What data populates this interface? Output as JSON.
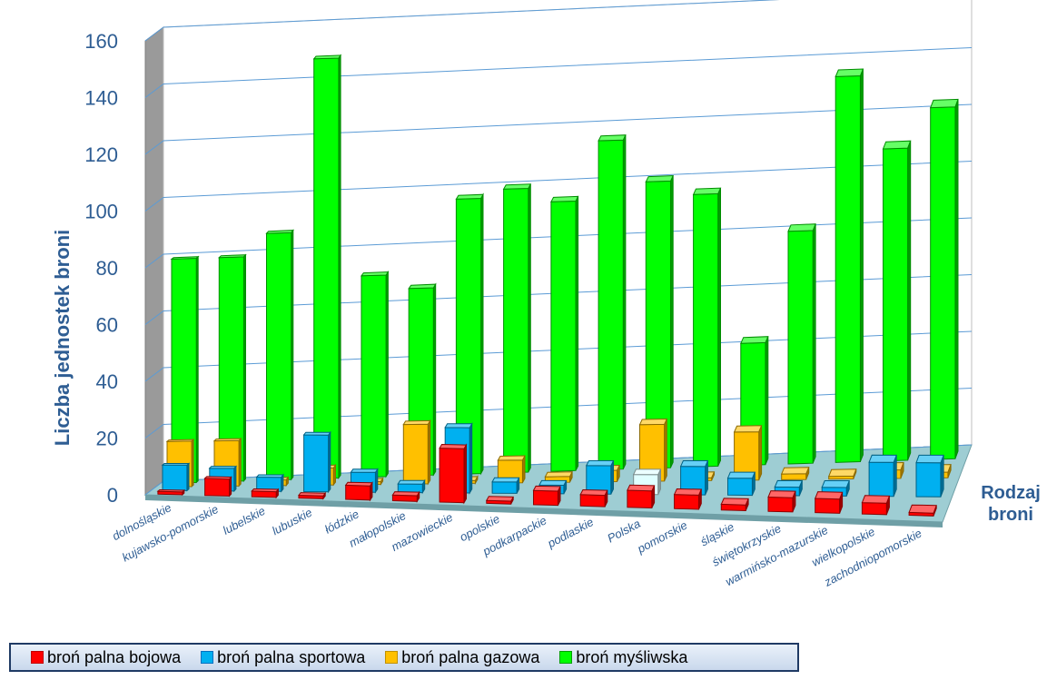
{
  "chart_data": {
    "type": "bar",
    "title": "",
    "ylabel": "Liczba jednostek broni",
    "depth_axis_label": [
      "Rodzaj",
      "broni"
    ],
    "ylim": [
      0,
      160
    ],
    "yticks": [
      0,
      20,
      40,
      60,
      80,
      100,
      120,
      140,
      160
    ],
    "grid": true,
    "legend": "bottom",
    "categories": [
      "dolnośląskie",
      "kujawsko-pomorskie",
      "lubelskie",
      "lubuskie",
      "łódzkie",
      "małopolskie",
      "mazowieckie",
      "opolskie",
      "podkarpackie",
      "podlaskie",
      "Polska",
      "pomorskie",
      "śląskie",
      "świętokrzyskie",
      "warmińsko-mazurskie",
      "wielkopolskie",
      "zachodniopomorskie"
    ],
    "series": [
      {
        "name": "broń palna bojowa",
        "color": "#ff0000",
        "values": [
          1,
          6,
          2,
          1,
          5,
          2,
          19,
          1,
          5,
          4,
          6,
          5,
          2,
          5,
          5,
          4,
          1
        ]
      },
      {
        "name": "broń palna sportowa",
        "color": "#00b0f0",
        "values": [
          9,
          8,
          5,
          20,
          7,
          3,
          23,
          4,
          3,
          10,
          7,
          10,
          6,
          3,
          3,
          12,
          12
        ]
      },
      {
        "name": "broń palna gazowa",
        "color": "#ffc000",
        "values": [
          16,
          16,
          2,
          6,
          1,
          21,
          1,
          8,
          2,
          4,
          20,
          1,
          17,
          2,
          1,
          3,
          2
        ]
      },
      {
        "name": "broń myśliwska",
        "color": "#00ff00",
        "values": [
          79,
          79,
          87,
          148,
          71,
          66,
          97,
          100,
          95,
          116,
          101,
          96,
          43,
          82,
          136,
          110,
          124
        ]
      }
    ],
    "highlight": {
      "category": "Polska",
      "color": "#e0ffff"
    }
  }
}
